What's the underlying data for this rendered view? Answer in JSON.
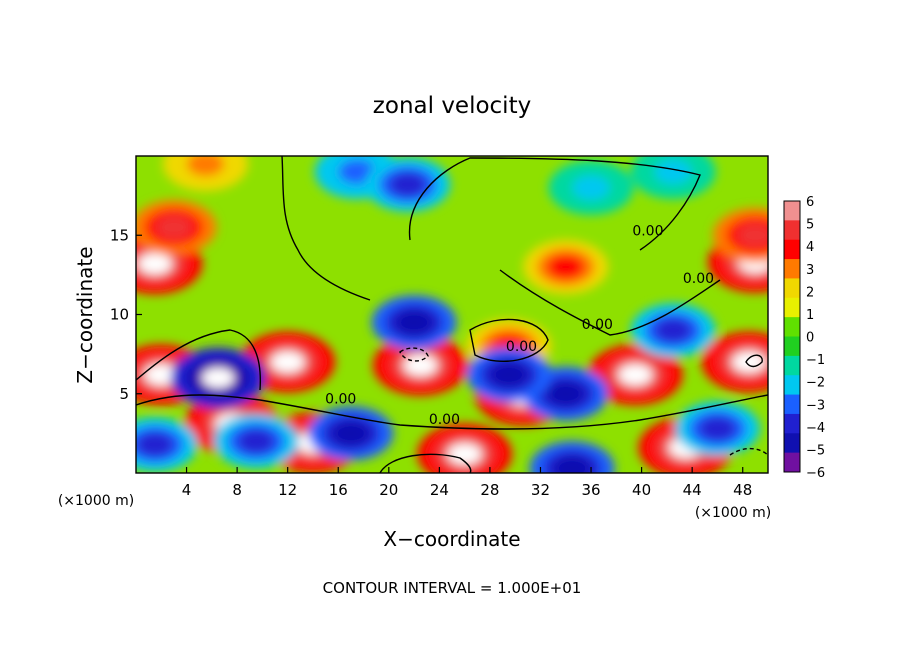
{
  "chart_data": {
    "type": "heatmap",
    "title": "zonal velocity",
    "xlabel": "X−coordinate",
    "ylabel": "Z−coordinate",
    "x_unit_left": "(×1000 m)",
    "x_unit_right": "(×1000 m)",
    "footer": "CONTOUR INTERVAL = 1.000E+01",
    "xlim": [
      0,
      50
    ],
    "ylim": [
      0,
      20
    ],
    "x_ticks": [
      "4",
      "8",
      "12",
      "16",
      "20",
      "24",
      "28",
      "32",
      "36",
      "40",
      "44",
      "48"
    ],
    "y_ticks": [
      "5",
      "10",
      "15"
    ],
    "colorbar": {
      "levels": [
        "6",
        "5",
        "4",
        "3",
        "2",
        "1",
        "0",
        "−1",
        "−2",
        "−3",
        "−4",
        "−5",
        "−6"
      ],
      "range": [
        -6,
        6
      ],
      "colors": [
        "#f09090",
        "#f03030",
        "#ff0000",
        "#ff7a00",
        "#f0d800",
        "#e8f000",
        "#60e000",
        "#20d020",
        "#00d8a0",
        "#00c8f0",
        "#1a60ff",
        "#2020d0",
        "#1010b0",
        "#7010a0"
      ]
    },
    "contour_labels": [
      {
        "text": "0.00",
        "x": 40.5,
        "y": 15.0
      },
      {
        "text": "0.00",
        "x": 44.5,
        "y": 12.0
      },
      {
        "text": "0.00",
        "x": 36.5,
        "y": 9.1
      },
      {
        "text": "0.00",
        "x": 30.5,
        "y": 7.7
      },
      {
        "text": "0.00",
        "x": 16.2,
        "y": 4.4
      },
      {
        "text": "0.00",
        "x": 24.4,
        "y": 3.1
      }
    ],
    "features": [
      {
        "kind": "positive_max",
        "x": 1.5,
        "y": 13.2,
        "value": 6
      },
      {
        "kind": "positive_max",
        "x": 2.0,
        "y": 6.2,
        "value": 6
      },
      {
        "kind": "positive_max",
        "x": 12.0,
        "y": 7.0,
        "value": 6
      },
      {
        "kind": "positive_max",
        "x": 7.6,
        "y": 3.1,
        "value": 6
      },
      {
        "kind": "positive_max",
        "x": 14.0,
        "y": 1.9,
        "value": 6
      },
      {
        "kind": "positive_max",
        "x": 22.5,
        "y": 6.8,
        "value": 6
      },
      {
        "kind": "positive_max",
        "x": 30.6,
        "y": 4.9,
        "value": 6
      },
      {
        "kind": "positive_max",
        "x": 39.5,
        "y": 6.2,
        "value": 6
      },
      {
        "kind": "positive_max",
        "x": 48.5,
        "y": 7.0,
        "value": 6
      },
      {
        "kind": "positive_max",
        "x": 49.0,
        "y": 13.3,
        "value": 6
      },
      {
        "kind": "positive_max",
        "x": 26.0,
        "y": 1.2,
        "value": 6
      },
      {
        "kind": "positive_max",
        "x": 43.5,
        "y": 1.6,
        "value": 6
      },
      {
        "kind": "positive_max",
        "x": 3.0,
        "y": 15.5,
        "value": 5
      },
      {
        "kind": "positive_max",
        "x": 34.0,
        "y": 13.0,
        "value": 4
      },
      {
        "kind": "positive_max",
        "x": 49.0,
        "y": 15.0,
        "value": 5
      },
      {
        "kind": "positive_max",
        "x": 5.5,
        "y": 19.5,
        "value": 3
      },
      {
        "kind": "positive_max",
        "x": 29.5,
        "y": 8.0,
        "value": 4
      },
      {
        "kind": "negative_min",
        "x": 6.5,
        "y": 6.0,
        "value": -6
      },
      {
        "kind": "negative_min",
        "x": 22.0,
        "y": 9.5,
        "value": -5
      },
      {
        "kind": "negative_min",
        "x": 17.0,
        "y": 2.5,
        "value": -5
      },
      {
        "kind": "negative_min",
        "x": 34.0,
        "y": 5.0,
        "value": -5
      },
      {
        "kind": "negative_min",
        "x": 29.5,
        "y": 6.2,
        "value": -5
      },
      {
        "kind": "negative_min",
        "x": 42.5,
        "y": 9.0,
        "value": -4
      },
      {
        "kind": "negative_min",
        "x": 9.5,
        "y": 2.0,
        "value": -4
      },
      {
        "kind": "negative_min",
        "x": 1.5,
        "y": 1.8,
        "value": -4
      },
      {
        "kind": "negative_min",
        "x": 46.0,
        "y": 2.8,
        "value": -4
      },
      {
        "kind": "negative_min",
        "x": 34.5,
        "y": 0.3,
        "value": -5
      },
      {
        "kind": "negative_min",
        "x": 17.5,
        "y": 19.0,
        "value": -3
      },
      {
        "kind": "negative_min",
        "x": 21.5,
        "y": 18.2,
        "value": -4
      },
      {
        "kind": "negative_min",
        "x": 36.0,
        "y": 18.0,
        "value": -2
      },
      {
        "kind": "negative_min",
        "x": 42.5,
        "y": 19.0,
        "value": -2
      }
    ],
    "grid": false
  }
}
